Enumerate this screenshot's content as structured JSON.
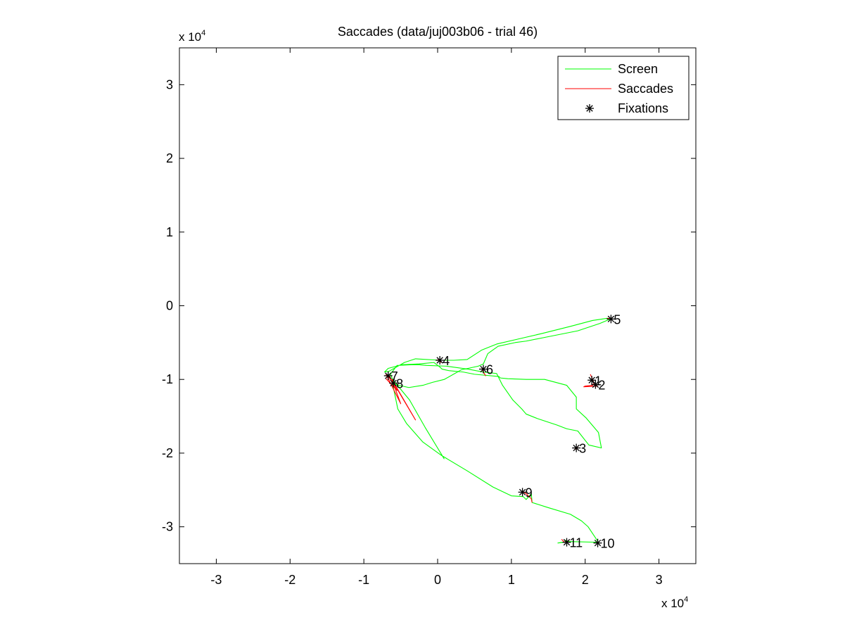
{
  "chart_data": {
    "type": "line",
    "title": "Saccades (data/juj003b06 - trial 46)",
    "xlabel": "",
    "ylabel": "",
    "x_multiplier_label": "x 10",
    "x_multiplier_exp": "4",
    "y_multiplier_label": "x 10",
    "y_multiplier_exp": "4",
    "xlim": [
      -3.5,
      3.5
    ],
    "ylim": [
      -3.5,
      3.5
    ],
    "xticks": [
      -3,
      -2,
      -1,
      0,
      1,
      2,
      3
    ],
    "yticks": [
      -3,
      -2,
      -1,
      0,
      1,
      2,
      3
    ],
    "xtick_labels": [
      "-3",
      "-2",
      "-1",
      "0",
      "1",
      "2",
      "3"
    ],
    "ytick_labels": [
      "-3",
      "-2",
      "-1",
      "0",
      "1",
      "2",
      "3"
    ],
    "grid": false,
    "legend_position": "top-right",
    "legend": [
      {
        "label": "Screen",
        "style": "line",
        "color": "#00ff00"
      },
      {
        "label": "Saccades",
        "style": "line",
        "color": "#ff0000"
      },
      {
        "label": "Fixations",
        "style": "asterisk",
        "color": "#000000"
      }
    ],
    "series": [
      {
        "name": "Screen",
        "color": "#00ff00",
        "x": [
          0.09,
          -0.17,
          -0.38,
          -0.61,
          -0.64,
          -0.55,
          -0.35,
          -0.25,
          -0.15,
          0.12,
          0.41,
          0.62,
          0.8,
          0.88,
          1.02,
          1.14,
          1.2,
          1.35,
          1.62,
          1.75,
          1.9,
          2.05,
          2.22,
          2.18,
          2.01,
          1.88,
          1.88,
          1.75,
          1.45,
          1.2,
          0.95,
          0.85,
          0.83,
          0.5,
          0.35,
          0.15,
          0.06,
          0.04,
          -0.05,
          -0.25,
          -0.48,
          -0.67,
          -0.72,
          -0.66,
          -0.45,
          -0.3,
          0.04,
          0.22,
          0.4,
          0.6,
          0.8,
          1.1,
          1.4,
          1.8,
          2.1,
          2.3,
          2.34,
          2.2,
          1.9,
          1.5,
          1.2,
          1.05,
          0.82,
          0.68,
          0.62,
          0.55,
          0.32,
          0.09,
          -0.07,
          -0.2,
          -0.39,
          -0.61,
          -0.54,
          -0.42,
          -0.2,
          0.05,
          0.4,
          0.75,
          1.0,
          1.16,
          1.2,
          1.27,
          1.28,
          1.5,
          1.8,
          1.95,
          2.04,
          2.18,
          1.75,
          1.63,
          1.78,
          1.72
        ],
        "y": [
          -2.08,
          -1.65,
          -1.28,
          -1.0,
          -0.93,
          -0.81,
          -0.8,
          -0.8,
          -0.81,
          -0.82,
          -0.86,
          -0.9,
          -0.92,
          -1.08,
          -1.28,
          -1.4,
          -1.47,
          -1.53,
          -1.62,
          -1.67,
          -1.7,
          -1.89,
          -1.93,
          -1.72,
          -1.52,
          -1.4,
          -1.24,
          -1.08,
          -1.0,
          -1.0,
          -0.99,
          -0.98,
          -0.96,
          -0.93,
          -0.9,
          -0.88,
          -0.86,
          -0.84,
          -0.77,
          -0.79,
          -0.8,
          -0.85,
          -0.9,
          -0.89,
          -0.77,
          -0.72,
          -0.74,
          -0.74,
          -0.73,
          -0.6,
          -0.52,
          -0.45,
          -0.38,
          -0.28,
          -0.2,
          -0.17,
          -0.18,
          -0.24,
          -0.34,
          -0.42,
          -0.48,
          -0.5,
          -0.55,
          -0.65,
          -0.79,
          -0.82,
          -0.87,
          -1.0,
          -1.04,
          -1.08,
          -1.11,
          -1.06,
          -1.4,
          -1.6,
          -1.85,
          -2.03,
          -2.24,
          -2.46,
          -2.58,
          -2.59,
          -2.63,
          -2.55,
          -2.67,
          -2.74,
          -2.83,
          -2.92,
          -3.0,
          -3.21,
          -3.2,
          -3.22,
          -3.2,
          -3.18
        ]
      },
      {
        "name": "Saccades",
        "color": "#ff0000",
        "segments": [
          [
            [
              2.07,
              -0.93
            ],
            [
              2.1,
              -1.0
            ],
            [
              2.12,
              -1.05
            ],
            [
              2.1,
              -1.08
            ],
            [
              2.0,
              -1.09
            ],
            [
              1.98,
              -1.1
            ],
            [
              2.17,
              -1.09
            ]
          ],
          [
            [
              1.9,
              -1.91
            ],
            [
              1.88,
              -1.95
            ],
            [
              1.86,
              -1.93
            ]
          ],
          [
            [
              0.0,
              -0.73
            ],
            [
              0.05,
              -0.77
            ]
          ],
          [
            [
              0.6,
              -0.84
            ],
            [
              0.62,
              -0.9
            ],
            [
              0.65,
              -0.95
            ],
            [
              0.61,
              -0.88
            ]
          ],
          [
            [
              2.3,
              -0.17
            ],
            [
              2.35,
              -0.18
            ]
          ],
          [
            [
              -0.7,
              -0.93
            ],
            [
              -0.5,
              -1.33
            ],
            [
              -0.62,
              -1.0
            ],
            [
              -0.3,
              -1.55
            ],
            [
              -0.65,
              -0.96
            ],
            [
              -0.68,
              -0.94
            ],
            [
              -0.55,
              -1.15
            ],
            [
              -0.7,
              -0.99
            ]
          ],
          [
            [
              1.15,
              -2.52
            ],
            [
              1.2,
              -2.55
            ],
            [
              1.27,
              -2.62
            ],
            [
              1.28,
              -2.67
            ]
          ],
          [
            [
              1.68,
              -3.17
            ],
            [
              1.72,
              -3.21
            ],
            [
              1.78,
              -3.19
            ]
          ]
        ]
      },
      {
        "name": "Fixations",
        "color": "#000000",
        "marker": "*",
        "x": [
          2.09,
          2.14,
          1.88,
          0.03,
          2.35,
          0.62,
          -0.67,
          -0.6,
          1.15,
          2.17,
          1.75
        ],
        "y": [
          -1.01,
          -1.07,
          -1.93,
          -0.74,
          -0.18,
          -0.86,
          -0.95,
          -1.05,
          -2.53,
          -3.22,
          -3.21
        ],
        "labels": [
          "1",
          "2",
          "3",
          "4",
          "5",
          "6",
          "7",
          "8",
          "9",
          "10",
          "11"
        ]
      }
    ]
  }
}
